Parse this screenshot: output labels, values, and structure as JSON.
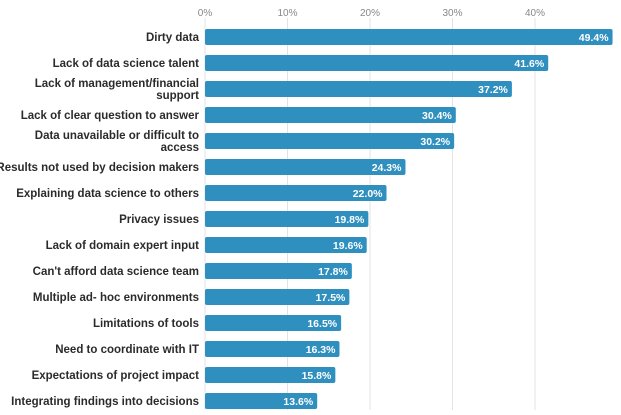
{
  "chart_data": {
    "type": "bar",
    "orientation": "horizontal",
    "categories": [
      [
        "Dirty data"
      ],
      [
        "Lack of data science talent"
      ],
      [
        "Lack of management/financial",
        "support"
      ],
      [
        "Lack of clear question to answer"
      ],
      [
        "Data unavailable or difficult to",
        "access"
      ],
      [
        "Results not used by decision makers"
      ],
      [
        "Explaining data science to others"
      ],
      [
        "Privacy issues"
      ],
      [
        "Lack of domain expert input"
      ],
      [
        "Can't afford data science team"
      ],
      [
        "Multiple ad- hoc environments"
      ],
      [
        "Limitations of tools"
      ],
      [
        "Need to coordinate with IT"
      ],
      [
        "Expectations of project impact"
      ],
      [
        "Integrating findings into decisions"
      ]
    ],
    "values": [
      49.4,
      41.6,
      37.2,
      30.4,
      30.2,
      24.3,
      22.0,
      19.8,
      19.6,
      17.8,
      17.5,
      16.5,
      16.3,
      15.8,
      13.6
    ],
    "value_labels": [
      "49.4%",
      "41.6%",
      "37.2%",
      "30.4%",
      "30.2%",
      "24.3%",
      "22.0%",
      "19.8%",
      "19.6%",
      "17.8%",
      "17.5%",
      "16.5%",
      "16.3%",
      "15.8%",
      "13.6%"
    ],
    "x_ticks": [
      0,
      10,
      20,
      30,
      40
    ],
    "x_tick_labels": [
      "0%",
      "10%",
      "20%",
      "30%",
      "40%"
    ],
    "xlim": [
      0,
      50
    ],
    "grid": true,
    "title": "",
    "xlabel": "",
    "ylabel": "",
    "colors": {
      "bar": "#2f8fbf",
      "value_text": "#ffffff",
      "gridline": "#e3e3e3"
    }
  }
}
